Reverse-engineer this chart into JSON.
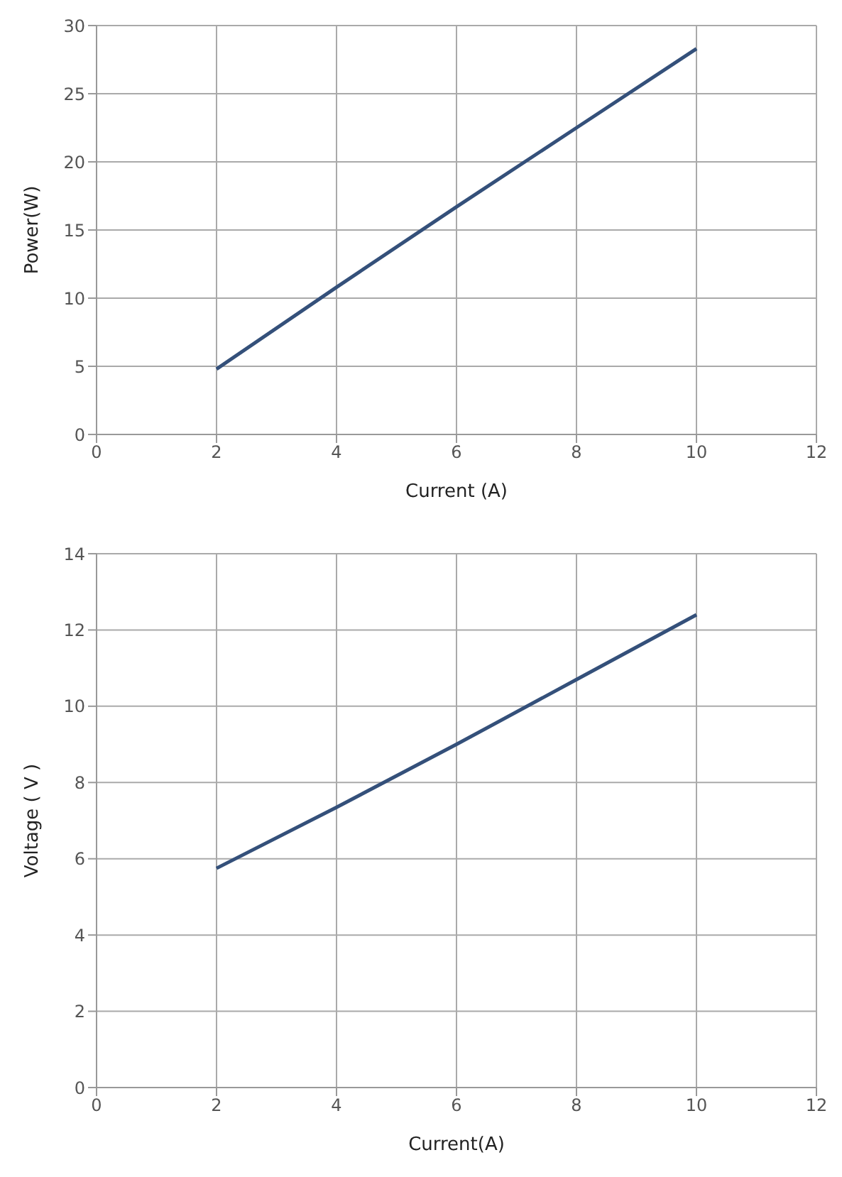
{
  "chart_data": [
    {
      "type": "line",
      "xlabel": "Current  (A)",
      "ylabel": "Power(W)",
      "x": [
        2,
        4,
        6,
        8,
        10
      ],
      "series": [
        {
          "color": "#34507a",
          "values": [
            4.8,
            10.8,
            16.7,
            22.5,
            28.3
          ]
        }
      ],
      "xlim": [
        0,
        12
      ],
      "xticks": [
        0,
        2,
        4,
        6,
        8,
        10,
        12
      ],
      "ylim": [
        0,
        30
      ],
      "yticks": [
        0,
        5,
        10,
        15,
        20,
        25,
        30
      ],
      "grid": true,
      "legend": false
    },
    {
      "type": "line",
      "xlabel": "Current(A)",
      "ylabel": "Voltage ( V )",
      "x": [
        2,
        4,
        6,
        8,
        10
      ],
      "series": [
        {
          "color": "#34507a",
          "values": [
            5.75,
            7.35,
            9.0,
            10.7,
            12.4
          ]
        }
      ],
      "xlim": [
        0,
        12
      ],
      "xticks": [
        0,
        2,
        4,
        6,
        8,
        10,
        12
      ],
      "ylim": [
        0,
        14
      ],
      "yticks": [
        0,
        2,
        4,
        6,
        8,
        10,
        12,
        14
      ],
      "grid": true,
      "legend": false
    }
  ]
}
